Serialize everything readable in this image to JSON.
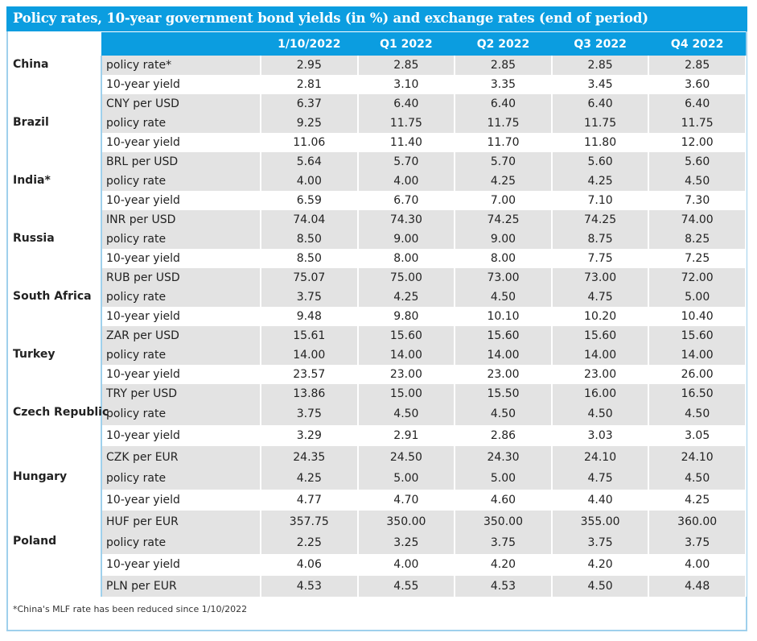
{
  "title": "Policy rates, 10-year government bond yields (in %) and exchange rates (end of period)",
  "columns": [
    "1/10/2022",
    "Q1 2022",
    "Q2 2022",
    "Q3 2022",
    "Q4 2022"
  ],
  "groups": [
    {
      "country": "China",
      "rows": [
        {
          "label": "policy rate*",
          "values": [
            "2.95",
            "2.85",
            "2.85",
            "2.85",
            "2.85"
          ]
        },
        {
          "label": "10-year yield",
          "values": [
            "2.81",
            "3.10",
            "3.35",
            "3.45",
            "3.60"
          ]
        },
        {
          "label": "CNY per USD",
          "values": [
            "6.37",
            "6.40",
            "6.40",
            "6.40",
            "6.40"
          ]
        }
      ]
    },
    {
      "country": "Brazil",
      "rows": [
        {
          "label": "policy rate",
          "values": [
            "9.25",
            "11.75",
            "11.75",
            "11.75",
            "11.75"
          ]
        },
        {
          "label": "10-year yield",
          "values": [
            "11.06",
            "11.40",
            "11.70",
            "11.80",
            "12.00"
          ]
        },
        {
          "label": "BRL per USD",
          "values": [
            "5.64",
            "5.70",
            "5.70",
            "5.60",
            "5.60"
          ]
        }
      ]
    },
    {
      "country": "India*",
      "rows": [
        {
          "label": "policy rate",
          "values": [
            "4.00",
            "4.00",
            "4.25",
            "4.25",
            "4.50"
          ]
        },
        {
          "label": "10-year yield",
          "values": [
            "6.59",
            "6.70",
            "7.00",
            "7.10",
            "7.30"
          ]
        },
        {
          "label": "INR per USD",
          "values": [
            "74.04",
            "74.30",
            "74.25",
            "74.25",
            "74.00"
          ]
        }
      ]
    },
    {
      "country": "Russia",
      "rows": [
        {
          "label": "policy rate",
          "values": [
            "8.50",
            "9.00",
            "9.00",
            "8.75",
            "8.25"
          ]
        },
        {
          "label": "10-year yield",
          "values": [
            "8.50",
            "8.00",
            "8.00",
            "7.75",
            "7.25"
          ]
        },
        {
          "label": "RUB per USD",
          "values": [
            "75.07",
            "75.00",
            "73.00",
            "73.00",
            "72.00"
          ]
        }
      ]
    },
    {
      "country": "South Africa",
      "rows": [
        {
          "label": "policy rate",
          "values": [
            "3.75",
            "4.25",
            "4.50",
            "4.75",
            "5.00"
          ]
        },
        {
          "label": "10-year yield",
          "values": [
            "9.48",
            "9.80",
            "10.10",
            "10.20",
            "10.40"
          ]
        },
        {
          "label": "ZAR per USD",
          "values": [
            "15.61",
            "15.60",
            "15.60",
            "15.60",
            "15.60"
          ]
        }
      ]
    },
    {
      "country": "Turkey",
      "rows": [
        {
          "label": "policy rate",
          "values": [
            "14.00",
            "14.00",
            "14.00",
            "14.00",
            "14.00"
          ]
        },
        {
          "label": "10-year yield",
          "values": [
            "23.57",
            "23.00",
            "23.00",
            "23.00",
            "26.00"
          ]
        },
        {
          "label": "TRY per USD",
          "values": [
            "13.86",
            "15.00",
            "15.50",
            "16.00",
            "16.50"
          ]
        }
      ]
    },
    {
      "country": "Czech Republic",
      "rows": [
        {
          "label": "policy rate",
          "values": [
            "3.75",
            "4.50",
            "4.50",
            "4.50",
            "4.50"
          ]
        },
        {
          "label": "10-year yield",
          "values": [
            "3.29",
            "2.91",
            "2.86",
            "3.03",
            "3.05"
          ]
        },
        {
          "label": "CZK per EUR",
          "values": [
            "24.35",
            "24.50",
            "24.30",
            "24.10",
            "24.10"
          ]
        }
      ]
    },
    {
      "country": "Hungary",
      "rows": [
        {
          "label": "policy rate",
          "values": [
            "4.25",
            "5.00",
            "5.00",
            "4.75",
            "4.50"
          ]
        },
        {
          "label": "10-year yield",
          "values": [
            "4.77",
            "4.70",
            "4.60",
            "4.40",
            "4.25"
          ]
        },
        {
          "label": "HUF per EUR",
          "values": [
            "357.75",
            "350.00",
            "350.00",
            "355.00",
            "360.00"
          ]
        }
      ]
    },
    {
      "country": "Poland",
      "rows": [
        {
          "label": "policy rate",
          "values": [
            "2.25",
            "3.25",
            "3.75",
            "3.75",
            "3.75"
          ]
        },
        {
          "label": "10-year yield",
          "values": [
            "4.06",
            "4.00",
            "4.20",
            "4.20",
            "4.00"
          ]
        },
        {
          "label": "PLN per EUR",
          "values": [
            "4.53",
            "4.55",
            "4.53",
            "4.50",
            "4.48"
          ]
        }
      ]
    }
  ],
  "footnote": "*China's MLF rate has been reduced since 1/10/2022",
  "colors": {
    "header_blue": "#0b9de0",
    "row_shade": "#e3e3e3",
    "border_light_blue": "#9fd0ec"
  }
}
